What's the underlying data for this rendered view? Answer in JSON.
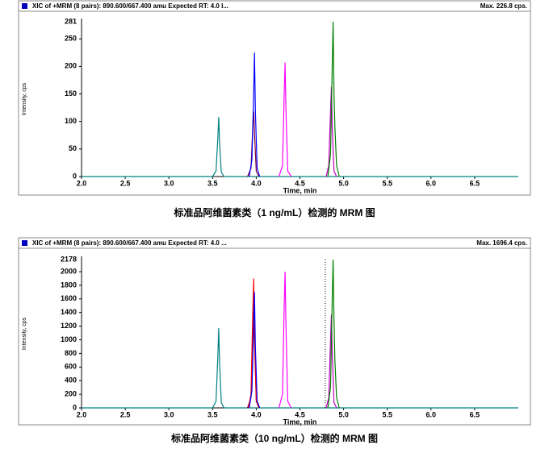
{
  "chart_data": [
    {
      "type": "line",
      "header": "XIC of +MRM (8 pairs): 890.600/667.400 amu Expected RT: 4.0 I...",
      "max_label": "Max. 226.8 cps.",
      "caption": "标准品阿维菌素类（1 ng/mL）检测的 MRM 图",
      "xlabel": "Time, min",
      "ylabel": "Intensity, cps",
      "xlim": [
        2.0,
        7.0
      ],
      "ylim": [
        0,
        281
      ],
      "xticks": [
        {
          "value": 2,
          "label": "2.0"
        },
        {
          "value": 2.5,
          "label": "2.5"
        },
        {
          "value": 3,
          "label": "3.0"
        },
        {
          "value": 3.5,
          "label": "3.5"
        },
        {
          "value": 4,
          "label": "4.0"
        },
        {
          "value": 4.5,
          "label": "4.5"
        },
        {
          "value": 5,
          "label": "5.0"
        },
        {
          "value": 5.5,
          "label": "5.5"
        },
        {
          "value": 6,
          "label": "6.0"
        },
        {
          "value": 6.5,
          "label": "6.5"
        }
      ],
      "yticks": [
        0,
        50,
        100,
        150,
        200,
        250
      ],
      "series": [
        {
          "color": "#008080",
          "x": [
            2.0,
            3.5,
            3.54,
            3.56,
            3.57,
            3.58,
            3.6,
            3.63,
            7.0
          ],
          "values": [
            0,
            0,
            10,
            70,
            108,
            60,
            8,
            0,
            0
          ]
        },
        {
          "color": "#800030",
          "x": [
            3.9,
            3.94,
            3.96,
            3.97,
            3.98,
            4.0,
            4.03
          ],
          "values": [
            0,
            15,
            90,
            118,
            80,
            10,
            0
          ]
        },
        {
          "color": "#0000ff",
          "x": [
            3.92,
            3.95,
            3.97,
            3.98,
            3.99,
            4.01,
            4.04
          ],
          "values": [
            0,
            30,
            150,
            225,
            120,
            15,
            0
          ]
        },
        {
          "color": "#ff00ff",
          "x": [
            4.26,
            4.3,
            4.32,
            4.33,
            4.34,
            4.36,
            4.4
          ],
          "values": [
            0,
            20,
            150,
            207,
            120,
            10,
            0
          ]
        },
        {
          "color": "#c000c0",
          "x": [
            4.8,
            4.83,
            4.85,
            4.86,
            4.87,
            4.89,
            4.92
          ],
          "values": [
            0,
            20,
            120,
            163,
            90,
            10,
            0
          ]
        },
        {
          "color": "#008000",
          "x": [
            4.82,
            4.85,
            4.87,
            4.88,
            4.89,
            4.9,
            4.92,
            4.95
          ],
          "values": [
            0,
            40,
            200,
            281,
            150,
            90,
            20,
            0
          ]
        }
      ]
    },
    {
      "type": "line",
      "header": "XIC of +MRM (8 pairs): 890.600/667.400 amu Expected RT: 4.0 ...",
      "max_label": "Max. 1696.4 cps.",
      "caption": "标准品阿维菌素类（10 ng/mL）检测的 MRM 图",
      "xlabel": "Time, min",
      "ylabel": "Intensity, cps",
      "xlim": [
        2.0,
        7.0
      ],
      "ylim": [
        0,
        2178
      ],
      "xticks": [
        {
          "value": 2,
          "label": "2.0"
        },
        {
          "value": 2.5,
          "label": "2.5"
        },
        {
          "value": 3,
          "label": "3.0"
        },
        {
          "value": 3.5,
          "label": "3.5"
        },
        {
          "value": 4,
          "label": "4.0"
        },
        {
          "value": 4.5,
          "label": "4.5"
        },
        {
          "value": 5,
          "label": "5.0"
        },
        {
          "value": 5.5,
          "label": "5.5"
        },
        {
          "value": 6,
          "label": "6.0"
        },
        {
          "value": 6.5,
          "label": "6.5"
        }
      ],
      "yticks": [
        0,
        200,
        400,
        600,
        800,
        1000,
        1200,
        1400,
        1600,
        1800,
        2000
      ],
      "marker_x": 4.79,
      "series": [
        {
          "color": "#008080",
          "x": [
            2.0,
            3.5,
            3.54,
            3.56,
            3.57,
            3.58,
            3.6,
            3.63,
            7.0
          ],
          "values": [
            0,
            0,
            100,
            750,
            1170,
            650,
            80,
            0,
            0
          ]
        },
        {
          "color": "#800030",
          "x": [
            3.9,
            3.94,
            3.96,
            3.97,
            3.98,
            4.0,
            4.03
          ],
          "values": [
            0,
            150,
            1200,
            1600,
            1000,
            100,
            0
          ]
        },
        {
          "color": "#ff0000",
          "x": [
            3.91,
            3.94,
            3.96,
            3.97,
            3.98,
            4.0,
            4.03
          ],
          "values": [
            0,
            200,
            1400,
            1900,
            1100,
            120,
            0
          ]
        },
        {
          "color": "#0000ff",
          "x": [
            3.92,
            3.95,
            3.97,
            3.98,
            3.99,
            4.01,
            4.04
          ],
          "values": [
            0,
            250,
            1200,
            1700,
            900,
            100,
            0
          ]
        },
        {
          "color": "#ff00ff",
          "x": [
            4.26,
            4.3,
            4.32,
            4.33,
            4.34,
            4.36,
            4.4
          ],
          "values": [
            0,
            200,
            1500,
            2000,
            1200,
            100,
            0
          ]
        },
        {
          "color": "#c000c0",
          "x": [
            4.8,
            4.83,
            4.85,
            4.86,
            4.87,
            4.89,
            4.92
          ],
          "values": [
            0,
            150,
            1000,
            1370,
            800,
            80,
            0
          ]
        },
        {
          "color": "#008000",
          "x": [
            4.82,
            4.85,
            4.87,
            4.88,
            4.89,
            4.9,
            4.92,
            4.95
          ],
          "values": [
            0,
            300,
            1600,
            2178,
            1300,
            700,
            150,
            0
          ]
        }
      ]
    }
  ]
}
